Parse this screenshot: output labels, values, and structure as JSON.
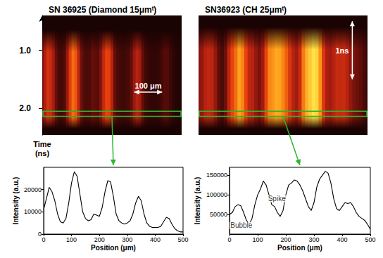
{
  "chart_data": [
    {
      "type": "image",
      "title": "SN 36925 (Diamond 15μmᵗ)",
      "xlim": [
        0,
        500
      ],
      "ylim": [
        0.4,
        2.46
      ],
      "yticks": [
        {
          "value": 1,
          "label": "1.0"
        },
        {
          "value": 2,
          "label": "2.0"
        }
      ],
      "ylabel": "Time (ns)",
      "tick_labels": "y",
      "streak_time": [
        0.65,
        2.35
      ],
      "color_range": [
        0,
        40000
      ],
      "window": [
        2.05,
        2.14
      ],
      "scale_bar": {
        "label": "100 μm",
        "x": [
          330,
          430
        ],
        "y": 1.72
      },
      "profile": {
        "type": "line",
        "xlabel": "Position (μm)",
        "ylabel": "Intensity (a.u.)",
        "xlim": [
          0,
          500
        ],
        "xticks": [
          0,
          100,
          200,
          300,
          400,
          500
        ],
        "ylim": [
          0,
          30000
        ],
        "yticks": [
          0,
          10000,
          20000
        ],
        "grid": false,
        "color": "#000000",
        "x": [
          0,
          10,
          20,
          30,
          40,
          50,
          60,
          70,
          80,
          90,
          100,
          110,
          120,
          130,
          140,
          150,
          160,
          170,
          180,
          190,
          200,
          210,
          220,
          230,
          240,
          250,
          260,
          270,
          280,
          290,
          300,
          310,
          320,
          330,
          340,
          350,
          360,
          370,
          380,
          390,
          400,
          410,
          420,
          430,
          440,
          450,
          460,
          470,
          480,
          490,
          500
        ],
        "values": [
          11000,
          16000,
          21000,
          19000,
          15000,
          9000,
          5500,
          5000,
          7000,
          14000,
          23000,
          28000,
          26000,
          18000,
          10000,
          7000,
          6000,
          6500,
          9000,
          8500,
          8000,
          12000,
          19000,
          24000,
          23500,
          17000,
          9000,
          6000,
          5000,
          4500,
          5000,
          6000,
          9000,
          14000,
          17000,
          15000,
          9000,
          5000,
          3500,
          3000,
          3000,
          3000,
          3500,
          5500,
          7500,
          7000,
          4500,
          2500,
          1500,
          1000,
          1000
        ],
        "annotations": []
      }
    },
    {
      "type": "image",
      "title": "SN36923 (CH 25μmᵗ)",
      "xlim": [
        0,
        500
      ],
      "ylim": [
        0.4,
        2.46
      ],
      "tick_labels": false,
      "streak_time": [
        0.6,
        2.35
      ],
      "color_range": [
        0,
        165000
      ],
      "window": [
        2.05,
        2.14
      ],
      "scale_bar": {
        "label": "1ns",
        "x": 455,
        "y": [
          0.5,
          1.5
        ]
      },
      "profile": {
        "type": "line",
        "xlabel": "Position (μm)",
        "ylabel": "Intensity (a.u.)",
        "xlim": [
          0,
          500
        ],
        "xticks": [
          0,
          100,
          200,
          300,
          400,
          500
        ],
        "ylim": [
          0,
          170000
        ],
        "yticks": [
          50000,
          100000,
          150000
        ],
        "grid": false,
        "color": "#000000",
        "x": [
          0,
          10,
          20,
          30,
          40,
          50,
          60,
          70,
          80,
          90,
          100,
          110,
          120,
          130,
          140,
          150,
          160,
          170,
          180,
          190,
          200,
          210,
          220,
          230,
          240,
          250,
          260,
          270,
          280,
          290,
          300,
          310,
          320,
          330,
          340,
          350,
          360,
          370,
          380,
          390,
          400,
          410,
          420,
          430,
          440,
          450,
          460,
          470,
          480,
          490,
          500
        ],
        "values": [
          50000,
          55000,
          70000,
          75000,
          72000,
          55000,
          35000,
          25000,
          40000,
          75000,
          100000,
          115000,
          135000,
          125000,
          100000,
          75000,
          70000,
          55000,
          45000,
          60000,
          100000,
          125000,
          130000,
          138000,
          135000,
          125000,
          110000,
          90000,
          70000,
          60000,
          80000,
          120000,
          140000,
          150000,
          160000,
          155000,
          130000,
          90000,
          65000,
          60000,
          70000,
          80000,
          78000,
          80000,
          70000,
          55000,
          45000,
          40000,
          35000,
          25000,
          12000
        ],
        "annotations": [
          {
            "text": "Spike",
            "x": 168,
            "y": 90000
          },
          {
            "text": "Bubble",
            "x": 42,
            "y": 22000
          }
        ]
      }
    }
  ]
}
